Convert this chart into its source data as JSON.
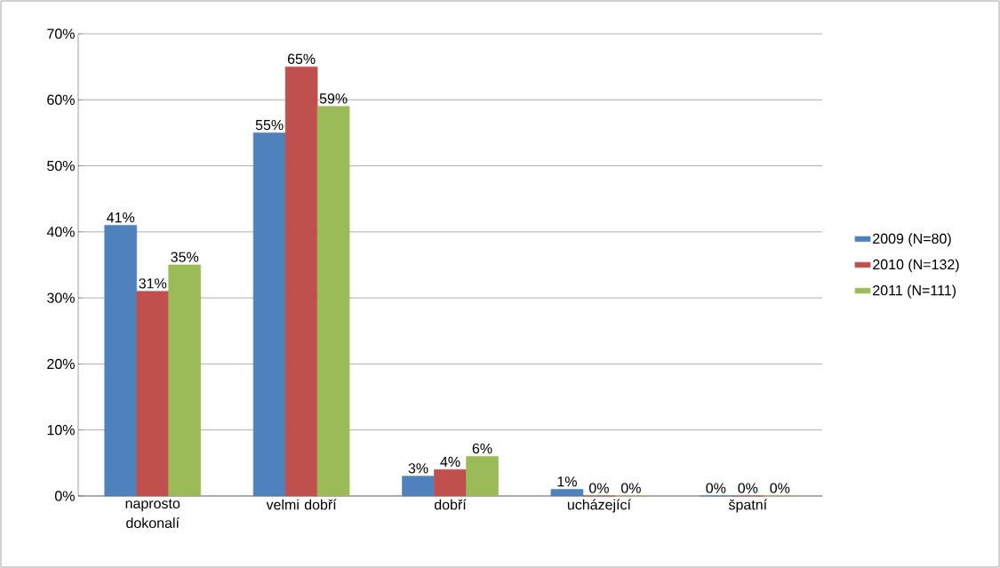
{
  "chart_data": {
    "type": "bar",
    "categories": [
      "naprosto dokonalí",
      "velmi dobří",
      "dobří",
      "ucházející",
      "špatní"
    ],
    "series": [
      {
        "name": "2009 (N=80)",
        "color": "#4f81bd",
        "values": [
          41,
          55,
          3,
          1,
          0
        ],
        "value_labels": [
          "41%",
          "55%",
          "3%",
          "1%",
          "0%"
        ]
      },
      {
        "name": "2010 (N=132)",
        "color": "#c0504d",
        "values": [
          31,
          65,
          4,
          0,
          0
        ],
        "value_labels": [
          "31%",
          "65%",
          "4%",
          "0%",
          "0%"
        ]
      },
      {
        "name": "2011 (N=111)",
        "color": "#9bbb59",
        "values": [
          35,
          59,
          6,
          0,
          0
        ],
        "value_labels": [
          "35%",
          "59%",
          "6%",
          "0%",
          "0%"
        ]
      }
    ],
    "ylim": [
      0,
      70
    ],
    "yticks": [
      {
        "value": 0,
        "label": "0%"
      },
      {
        "value": 10,
        "label": "10%"
      },
      {
        "value": 20,
        "label": "20%"
      },
      {
        "value": 30,
        "label": "30%"
      },
      {
        "value": 40,
        "label": "40%"
      },
      {
        "value": 50,
        "label": "50%"
      },
      {
        "value": 60,
        "label": "60%"
      },
      {
        "value": 70,
        "label": "70%"
      }
    ],
    "grid": "y",
    "legend": "right"
  }
}
